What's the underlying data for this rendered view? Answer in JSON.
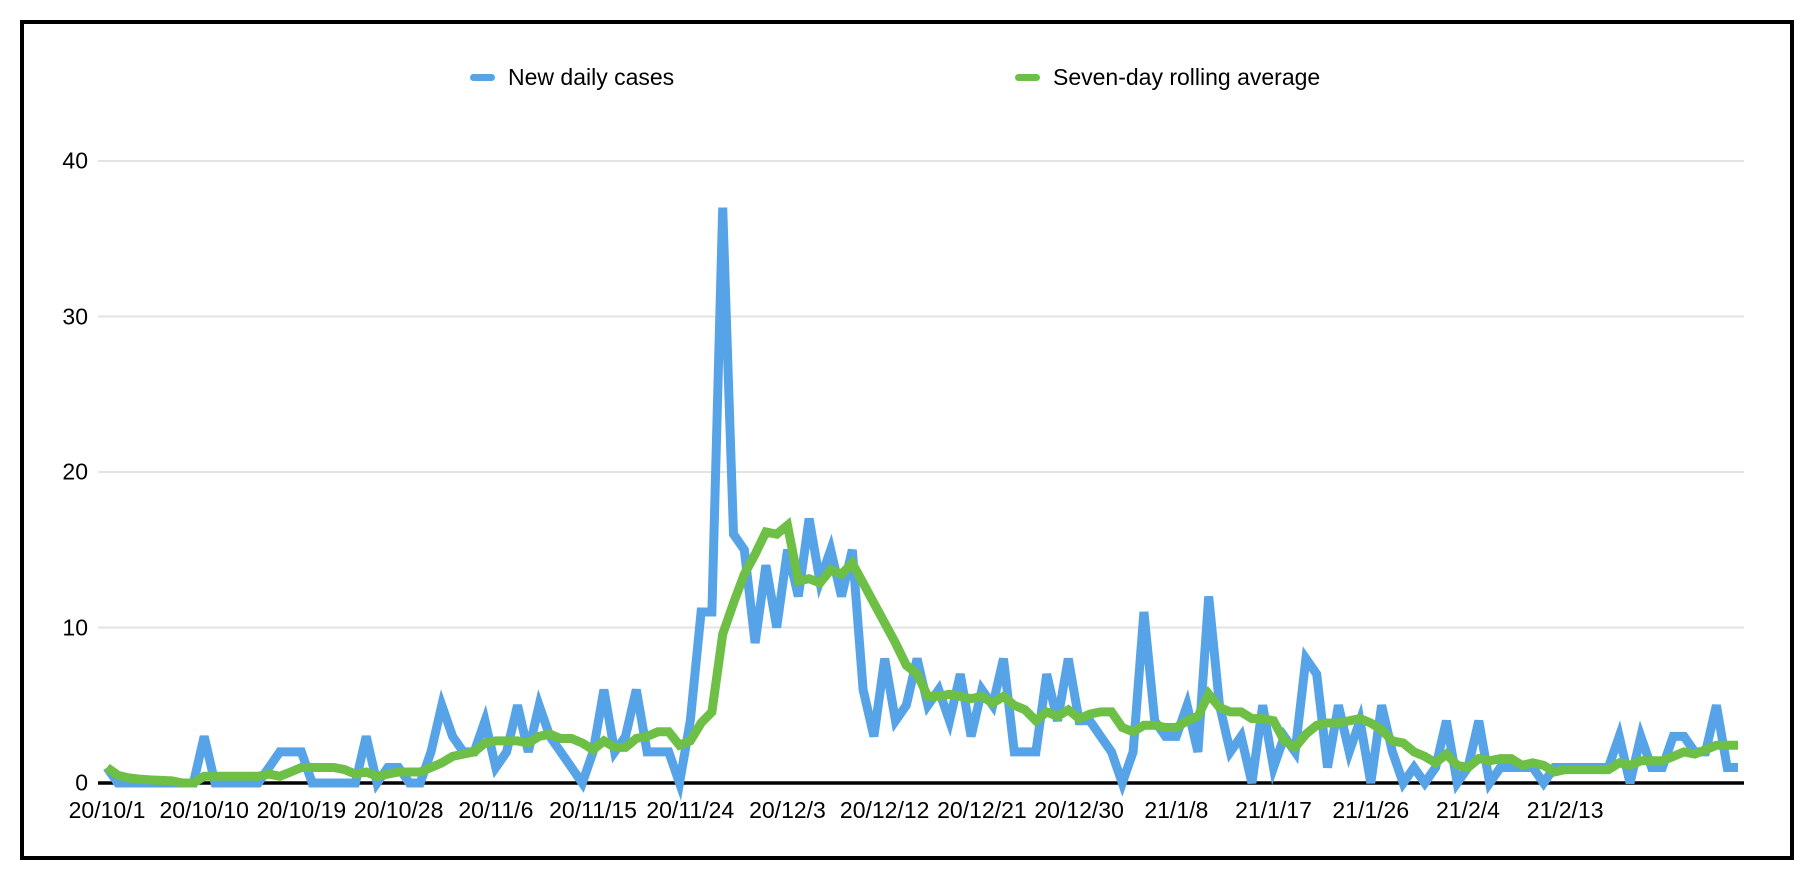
{
  "figure": {
    "background": "#ffffff",
    "frame_color": "#000000",
    "gridline_color": "#e3e3e3",
    "axis_color": "#000000"
  },
  "legend": {
    "series1_label": "New daily cases",
    "series2_label": "Seven-day rolling average"
  },
  "chart_data": {
    "type": "line",
    "title": "",
    "xlabel": "",
    "ylabel": "",
    "grid": true,
    "legend_position": "top",
    "y_axis": {
      "ticks": [
        0,
        10,
        20,
        30,
        40
      ],
      "min": 0,
      "max": 40
    },
    "x_axis": {
      "tick_labels": [
        "20/10/1",
        "20/10/10",
        "20/10/19",
        "20/10/28",
        "20/11/6",
        "20/11/15",
        "20/11/24",
        "20/12/3",
        "20/12/12",
        "20/12/21",
        "20/12/30",
        "21/1/8",
        "21/1/17",
        "21/1/26",
        "21/2/4",
        "21/2/13"
      ],
      "tick_point_indices": [
        0,
        9,
        18,
        27,
        36,
        45,
        54,
        63,
        72,
        81,
        90,
        99,
        108,
        117,
        126,
        135
      ],
      "total_points": 152
    },
    "series": [
      {
        "name": "New daily cases",
        "color": "#57a3e8",
        "values": [
          1,
          0,
          0,
          0,
          0,
          0,
          0,
          0,
          0,
          3,
          0,
          0,
          0,
          0,
          0,
          1,
          2,
          2,
          2,
          0,
          0,
          0,
          0,
          0,
          3,
          0,
          1,
          1,
          0,
          0,
          2,
          5,
          3,
          2,
          2,
          4,
          1,
          2,
          5,
          2,
          5,
          3,
          2,
          1,
          0,
          2,
          6,
          2,
          3,
          6,
          2,
          2,
          2,
          0,
          4,
          11,
          11,
          37,
          16,
          15,
          9,
          14,
          10,
          15,
          12,
          17,
          13,
          15,
          12,
          15,
          6,
          3,
          8,
          4,
          5,
          8,
          5,
          6,
          4,
          7,
          3,
          6,
          5,
          8,
          2,
          2,
          2,
          7,
          4,
          8,
          4,
          4,
          3,
          2,
          0,
          2,
          11,
          4,
          3,
          3,
          5,
          2,
          12,
          5,
          2,
          3,
          0,
          5,
          1,
          3,
          2,
          8,
          7,
          1,
          5,
          2,
          4,
          0,
          5,
          2,
          0,
          1,
          0,
          1,
          4,
          0,
          1,
          4,
          0,
          1,
          1,
          1,
          1,
          0,
          1,
          1,
          1,
          1,
          1,
          1,
          3,
          0,
          3,
          1,
          1,
          3,
          3,
          2,
          2,
          5,
          1,
          1
        ]
      },
      {
        "name": "Seven-day rolling average",
        "color": "#6dbf45",
        "values": [
          1,
          0.5,
          0.33,
          0.25,
          0.2,
          0.17,
          0.14,
          0,
          0,
          0.43,
          0.43,
          0.43,
          0.43,
          0.43,
          0.43,
          0.57,
          0.43,
          0.71,
          1,
          1,
          1,
          1,
          0.86,
          0.57,
          0.71,
          0.43,
          0.57,
          0.71,
          0.71,
          0.71,
          1,
          1.29,
          1.71,
          1.86,
          2,
          2.57,
          2.71,
          2.71,
          2.71,
          2.57,
          3,
          3.14,
          2.86,
          2.86,
          2.57,
          2.14,
          2.71,
          2.29,
          2.29,
          2.86,
          3,
          3.29,
          3.29,
          2.43,
          2.71,
          3.86,
          4.57,
          9.57,
          11.57,
          13.43,
          14.71,
          16.14,
          16,
          16.57,
          13,
          13.14,
          12.86,
          13.71,
          13.43,
          14.14,
          12.86,
          11.57,
          10.29,
          9,
          7.57,
          7,
          5.57,
          5.57,
          5.71,
          5.57,
          5.43,
          5.57,
          5.14,
          5.57,
          5,
          4.71,
          4,
          4.57,
          4.29,
          4.71,
          4.14,
          4.43,
          4.57,
          4.57,
          3.57,
          3.29,
          3.71,
          3.71,
          3.57,
          3.57,
          4,
          4.29,
          5.71,
          4.86,
          4.57,
          4.57,
          4.14,
          4.14,
          4,
          2.71,
          2.29,
          3.14,
          3.71,
          3.86,
          3.86,
          4,
          4.14,
          3.86,
          3.43,
          2.71,
          2.57,
          2,
          1.71,
          1.29,
          1.86,
          1.14,
          1,
          1.57,
          1.43,
          1.57,
          1.57,
          1.14,
          1.29,
          1.14,
          0.71,
          0.86,
          0.86,
          0.86,
          0.86,
          0.86,
          1.29,
          1.14,
          1.43,
          1.43,
          1.43,
          1.71,
          2,
          1.86,
          2.14,
          2.43,
          2.43,
          2.43
        ]
      }
    ]
  }
}
